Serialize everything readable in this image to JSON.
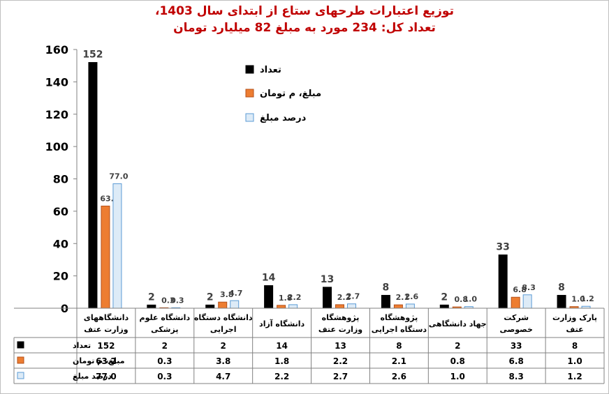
{
  "title_line1": "توزیع اعتبارات طرحهای ستاع از ابتدای سال 1403،",
  "title_line2": "تعداد کل: 234  مورد به مبلغ 82 میلیارد تومان",
  "chart_data": {
    "type": "bar",
    "title": "توزیع اعتبارات طرحهای ستاع از ابتدای سال 1403، تعداد کل: 234 مورد به مبلغ 82 میلیارد تومان",
    "ylim": [
      0,
      160
    ],
    "yticks": [
      "0",
      "20",
      "40",
      "60",
      "80",
      "100",
      "120",
      "140",
      "160"
    ],
    "grid": false,
    "legend_position": "top-center",
    "categories": [
      {
        "line1": "دانشگاههای",
        "line2": "وزارت عتف"
      },
      {
        "line1": "دانشگاه علوم",
        "line2": "پزشکی"
      },
      {
        "line1": "دانشگاه دستگاه",
        "line2": "اجرایی"
      },
      {
        "line1": "دانشگاه آزاد",
        "line2": ""
      },
      {
        "line1": "پژوهشگاه",
        "line2": "وزارت عتف"
      },
      {
        "line1": "پژوهشگاه",
        "line2": "دستگاه اجرایی"
      },
      {
        "line1": "جهاد دانشگاهی",
        "line2": ""
      },
      {
        "line1": "شرکت",
        "line2": "خصوصی"
      },
      {
        "line1": "پارک وزارت",
        "line2": "عتف"
      }
    ],
    "series": [
      {
        "name": "تعداد",
        "color": "#000000",
        "stroke": "#000000",
        "values": [
          152,
          2,
          2,
          14,
          13,
          8,
          2,
          33,
          8
        ],
        "labels": [
          "152",
          "2",
          "2",
          "14",
          "13",
          "8",
          "2",
          "33",
          "8"
        ]
      },
      {
        "name": "مبلغ، م تومان",
        "color": "#ed7d31",
        "stroke": "#b4501a",
        "values": [
          63.2,
          0.3,
          3.8,
          1.8,
          2.2,
          2.1,
          0.8,
          6.8,
          1.0
        ],
        "labels": [
          "63.2",
          "0.3",
          "3.8",
          "1.8",
          "2.2",
          "2.1",
          "0.8",
          "6.8",
          "1.0"
        ]
      },
      {
        "name": "درصد مبلغ",
        "color": "#ddebf7",
        "stroke": "#5b9bd5",
        "values": [
          77.0,
          0.3,
          4.7,
          2.2,
          2.7,
          2.6,
          1.0,
          8.3,
          1.2
        ],
        "labels": [
          "77.0",
          "0.3",
          "4.7",
          "2.2",
          "2.7",
          "2.6",
          "1.0",
          "8.3",
          "1.2"
        ]
      }
    ]
  }
}
